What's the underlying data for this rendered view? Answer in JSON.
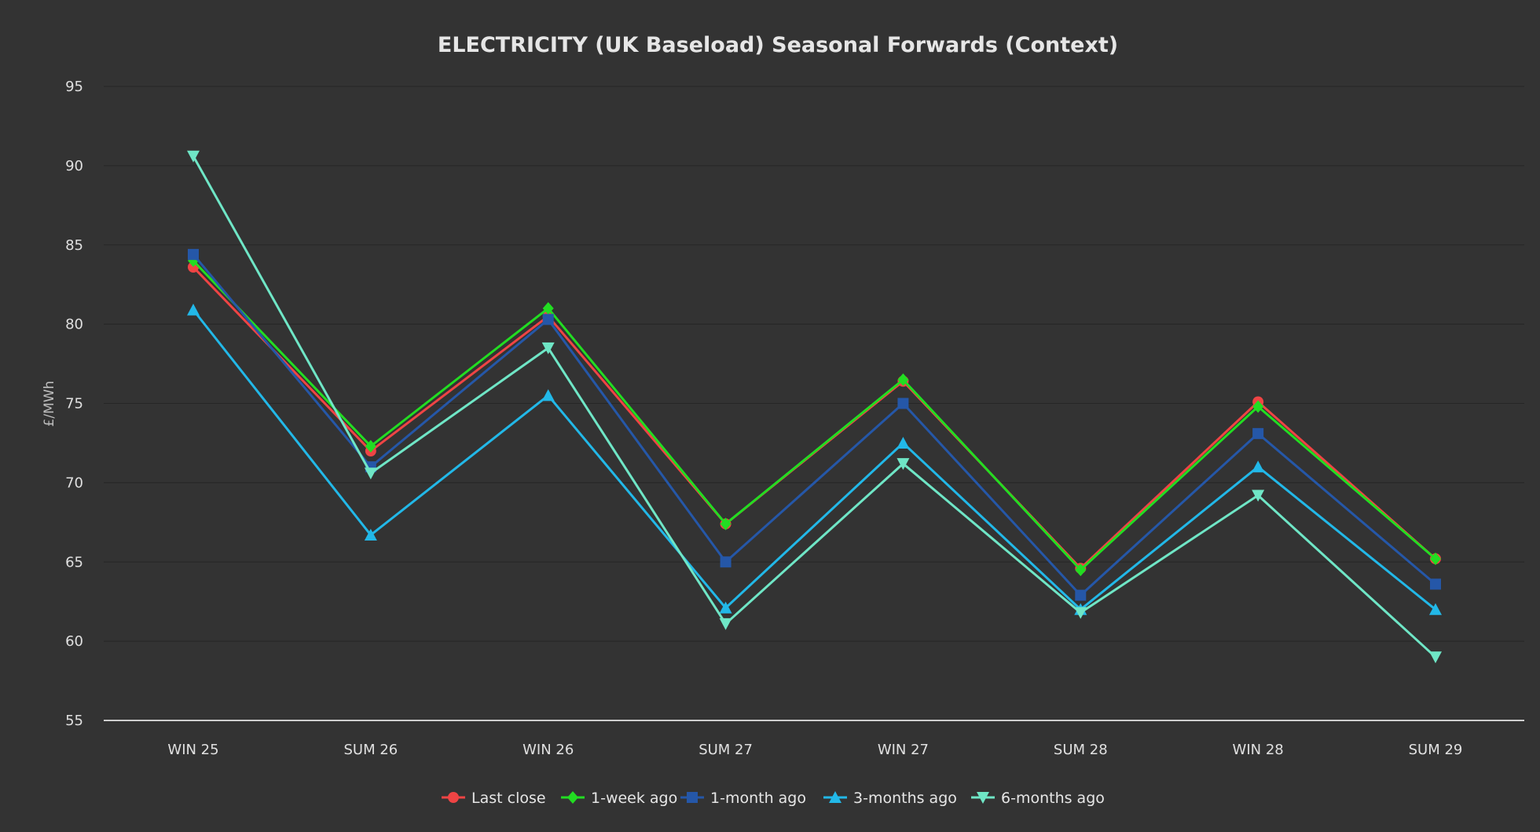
{
  "chart_data": {
    "type": "line",
    "title": "ELECTRICITY (UK Baseload) Seasonal Forwards (Context)",
    "xlabel": "",
    "ylabel": "£/MWh",
    "categories": [
      "WIN 25",
      "SUM 26",
      "WIN 26",
      "SUM 27",
      "WIN 27",
      "SUM 28",
      "WIN 28",
      "SUM 29"
    ],
    "ylim": [
      55,
      95
    ],
    "yticks": [
      55,
      60,
      65,
      70,
      75,
      80,
      85,
      90,
      95
    ],
    "grid": true,
    "legend_position": "bottom-center",
    "background": "#333333",
    "gridline_color": "#262626",
    "axis_line_color": "#cfcfcf",
    "series": [
      {
        "name": "Last close",
        "color": "#ef4444",
        "marker": "circle",
        "values": [
          83.6,
          72.0,
          80.5,
          67.4,
          76.4,
          64.6,
          75.1,
          65.2
        ]
      },
      {
        "name": "1-week ago",
        "color": "#22dd22",
        "marker": "diamond",
        "values": [
          84.0,
          72.3,
          81.0,
          67.4,
          76.5,
          64.5,
          74.8,
          65.2
        ]
      },
      {
        "name": "1-month ago",
        "color": "#2557a8",
        "marker": "square",
        "values": [
          84.4,
          71.0,
          80.3,
          65.0,
          75.0,
          62.9,
          73.1,
          63.6
        ]
      },
      {
        "name": "3-months ago",
        "color": "#22b8e8",
        "marker": "triangle-up",
        "values": [
          80.9,
          66.7,
          75.5,
          62.1,
          72.5,
          62.0,
          71.0,
          62.0
        ]
      },
      {
        "name": "6-months ago",
        "color": "#6fe6c6",
        "marker": "triangle-down",
        "values": [
          90.6,
          70.6,
          78.5,
          61.1,
          71.2,
          61.8,
          69.2,
          59.0
        ]
      }
    ]
  }
}
